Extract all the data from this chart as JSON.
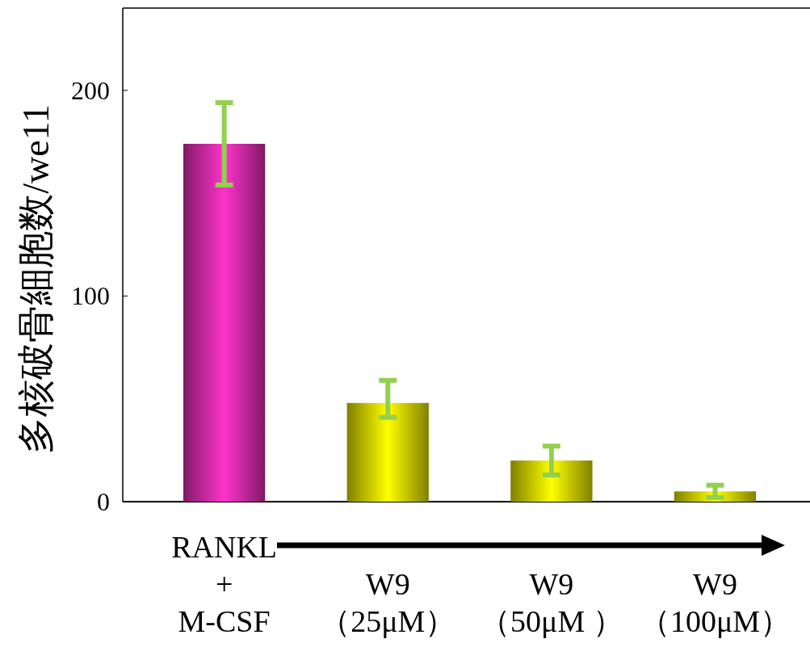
{
  "chart_data": {
    "type": "bar",
    "ylabel": "多核破骨細胞数/we11",
    "categories": [
      "RANKL\n+\nM-CSF",
      "W9\n（25μM）",
      "W9\n（50μM ）",
      "W9\n（100μM）"
    ],
    "values": [
      174,
      48,
      20,
      5
    ],
    "colors": [
      "#ff33cc",
      "#ffff00",
      "#ffff00",
      "#ffff00"
    ],
    "errors": [
      20,
      [
        41,
        59
      ],
      7,
      3
    ],
    "ylim": [
      0,
      240
    ],
    "yticks": [
      0,
      100,
      200
    ],
    "grid": false
  }
}
